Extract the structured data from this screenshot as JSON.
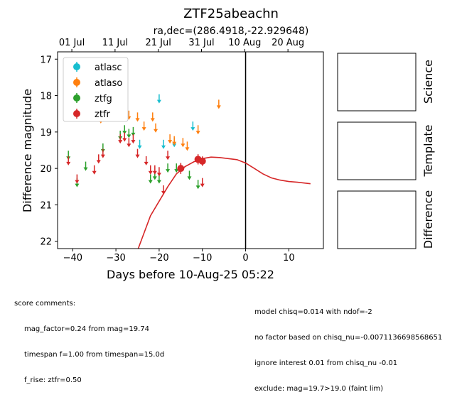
{
  "chart_data": {
    "type": "scatter",
    "title": "ZTF25abeachn",
    "subtitle": "ra,dec=(286.4918,-22.929648)",
    "xlabel": "Days before 10-Aug-25 05:22",
    "ylabel": "Difference magnitude",
    "xlim": [
      -43.5,
      18
    ],
    "ylim": [
      22.2,
      16.8
    ],
    "x_ticks": [
      -40,
      -30,
      -20,
      -10,
      0,
      10
    ],
    "y_ticks": [
      17,
      18,
      19,
      20,
      21,
      22
    ],
    "top_axis_ticks": [
      {
        "label": "01 Jul",
        "x": -40.2
      },
      {
        "label": "11 Jul",
        "x": -30.2
      },
      {
        "label": "21 Jul",
        "x": -20.2
      },
      {
        "label": "31 Jul",
        "x": -10.2
      },
      {
        "label": "10 Aug",
        "x": -0.2
      },
      {
        "label": "20 Aug",
        "x": 9.8
      }
    ],
    "vline_x": 0,
    "legend": {
      "position": "upper-left",
      "entries": [
        "atlasc",
        "atlaso",
        "ztfg",
        "ztfr"
      ]
    },
    "colors": {
      "atlasc": "#17becf",
      "atlaso": "#ff7f0e",
      "ztfg": "#2ca02c",
      "ztfr": "#d62728"
    },
    "series": [
      {
        "name": "atlasc",
        "marker": "upper-limit",
        "points": [
          [
            -24.5,
            19.35
          ],
          [
            -20.0,
            18.1
          ],
          [
            -19.0,
            19.35
          ],
          [
            -16.5,
            19.3
          ],
          [
            -12.2,
            18.85
          ]
        ]
      },
      {
        "name": "atlaso",
        "marker": "upper-limit",
        "points": [
          [
            -33.5,
            18.65
          ],
          [
            -31.0,
            18.45
          ],
          [
            -27.0,
            18.55
          ],
          [
            -25.0,
            18.6
          ],
          [
            -23.5,
            18.85
          ],
          [
            -21.5,
            18.6
          ],
          [
            -20.8,
            18.9
          ],
          [
            -17.5,
            19.2
          ],
          [
            -16.5,
            19.25
          ],
          [
            -14.5,
            19.3
          ],
          [
            -13.5,
            19.4
          ],
          [
            -11.0,
            18.95
          ],
          [
            -6.2,
            18.25
          ]
        ]
      },
      {
        "name": "ztfg",
        "marker": "upper-limit",
        "points": [
          [
            -41.0,
            19.65
          ],
          [
            -39.0,
            20.4
          ],
          [
            -37.0,
            19.95
          ],
          [
            -33.0,
            19.45
          ],
          [
            -29.0,
            19.1
          ],
          [
            -28.0,
            18.95
          ],
          [
            -27.0,
            19.05
          ],
          [
            -26.0,
            19.0
          ],
          [
            -22.0,
            20.3
          ],
          [
            -21.0,
            20.2
          ],
          [
            -20.0,
            20.3
          ],
          [
            -18.0,
            20.0
          ],
          [
            -16.0,
            20.0
          ],
          [
            -13.0,
            20.2
          ],
          [
            -11.0,
            20.45
          ]
        ]
      },
      {
        "name": "ztfr",
        "marker": "upper-limit",
        "points": [
          [
            -41.0,
            19.8
          ],
          [
            -39.0,
            20.3
          ],
          [
            -35.0,
            20.05
          ],
          [
            -34.0,
            19.75
          ],
          [
            -33.0,
            19.6
          ],
          [
            -29.0,
            19.2
          ],
          [
            -28.0,
            19.15
          ],
          [
            -27.0,
            19.3
          ],
          [
            -26.0,
            19.2
          ],
          [
            -25.0,
            19.6
          ],
          [
            -23.0,
            19.8
          ],
          [
            -22.0,
            20.05
          ],
          [
            -21.0,
            20.05
          ],
          [
            -20.0,
            20.1
          ],
          [
            -19.0,
            20.6
          ],
          [
            -18.0,
            19.65
          ],
          [
            -15.0,
            20.0
          ],
          [
            -10.0,
            20.4
          ]
        ]
      },
      {
        "name": "ztfr",
        "marker": "detection",
        "points": [
          [
            -15.0,
            20.0,
            0.15
          ],
          [
            -11.0,
            19.75,
            0.14
          ],
          [
            -10.0,
            19.8,
            0.13
          ]
        ]
      }
    ],
    "model_curve": {
      "color": "#d62728",
      "x": [
        -25,
        -22,
        -20,
        -18,
        -16,
        -14,
        -12,
        -10,
        -8,
        -6,
        -4,
        -2,
        0,
        2,
        4,
        6,
        8,
        10,
        12,
        15
      ],
      "y": [
        22.25,
        21.3,
        20.9,
        20.5,
        20.15,
        19.95,
        19.82,
        19.73,
        19.69,
        19.7,
        19.73,
        19.76,
        19.85,
        20.0,
        20.15,
        20.26,
        20.32,
        20.36,
        20.38,
        20.42
      ]
    },
    "side_panels": [
      "Science",
      "Template",
      "Difference"
    ]
  },
  "comments": {
    "left_header": "score comments:",
    "left": [
      "mag_factor=0.24 from mag=19.74",
      "timespan f=1.00 from timespan=15.0d",
      "f_rise: ztfr=0.50"
    ],
    "right": [
      "model chisq=0.014 with ndof=-2",
      "no factor based on chisq_nu=-0.0071136698568651",
      "ignore interest 0.01 from chisq_nu -0.01",
      "exclude: mag=19.7>19.0 (faint lim)"
    ]
  }
}
